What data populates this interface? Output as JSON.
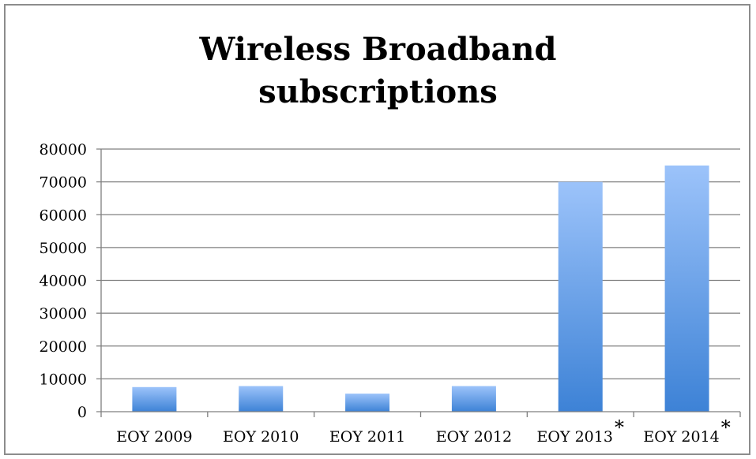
{
  "chart_data": {
    "type": "bar",
    "title_lines": [
      "Wireless Broadband",
      "subscriptions"
    ],
    "categories": [
      "EOY 2009",
      "EOY 2010",
      "EOY 2011",
      "EOY 2012",
      "EOY 2013",
      "EOY 2014"
    ],
    "category_markers": [
      "",
      "",
      "",
      "",
      "*",
      "*"
    ],
    "values": [
      7500,
      7800,
      5500,
      7800,
      70000,
      75000
    ],
    "xlabel": "",
    "ylabel": "",
    "ylim": [
      0,
      80000
    ],
    "yticks": [
      0,
      10000,
      20000,
      30000,
      40000,
      50000,
      60000,
      70000,
      80000
    ],
    "grid": true,
    "legend": "none",
    "colors": {
      "bar_top": "#9cc3fa",
      "bar_bottom": "#3d82d6",
      "grid": "#7f7f7f",
      "axis": "#7f7f7f",
      "frame": "#8c8c8c"
    }
  }
}
